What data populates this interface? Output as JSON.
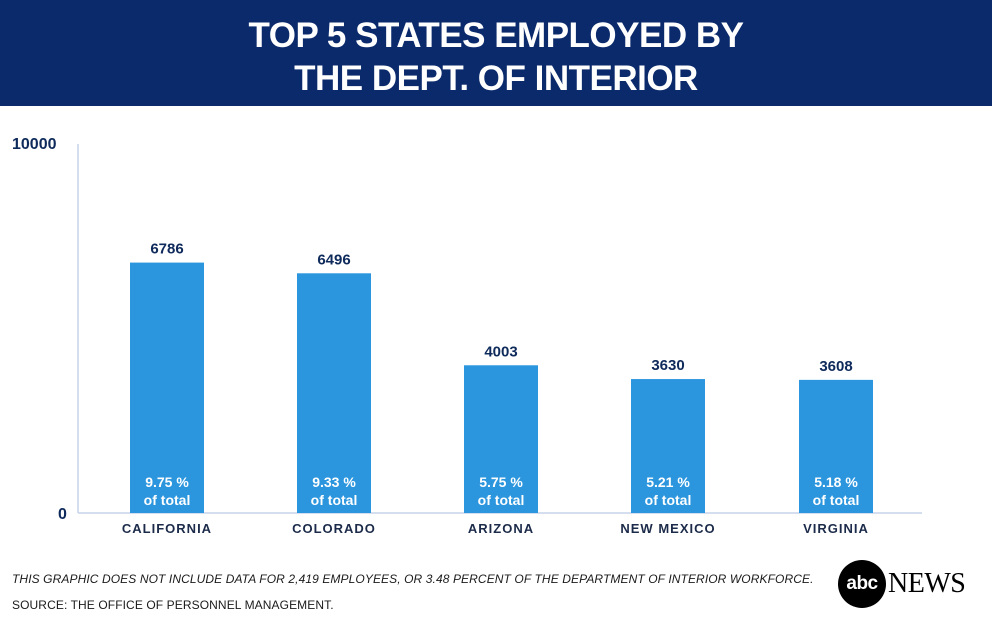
{
  "header": {
    "title_line1": "TOP 5 STATES EMPLOYED BY",
    "title_line2": "THE DEPT. OF INTERIOR"
  },
  "colors": {
    "banner": "#0b2a6b",
    "bar": "#2b96de",
    "value_label": "#0e2a5b",
    "axis": "#c7d4e8"
  },
  "chart_data": {
    "type": "bar",
    "categories": [
      "CALIFORNIA",
      "COLORADO",
      "ARIZONA",
      "NEW MEXICO",
      "VIRGINIA"
    ],
    "values": [
      6786,
      6496,
      4003,
      3630,
      3608
    ],
    "value_labels": [
      "6786",
      "6496",
      "4003",
      "3630",
      "3608"
    ],
    "share_labels": [
      "9.75 %",
      "9.33 %",
      "5.75 %",
      "5.21 %",
      "5.18 %"
    ],
    "share_suffix": "of total",
    "ylim": [
      0,
      10000
    ],
    "y_ticks": [
      "0",
      "10000"
    ],
    "grid": false,
    "title": "",
    "xlabel": "",
    "ylabel": ""
  },
  "footer": {
    "note": "THIS GRAPHIC DOES NOT INCLUDE DATA FOR 2,419 EMPLOYEES, OR 3.48 PERCENT OF THE DEPARTMENT OF INTERIOR WORKFORCE.",
    "source": "SOURCE: THE OFFICE OF PERSONNEL MANAGEMENT.",
    "logo_abc": "abc",
    "logo_news": "NEWS"
  }
}
